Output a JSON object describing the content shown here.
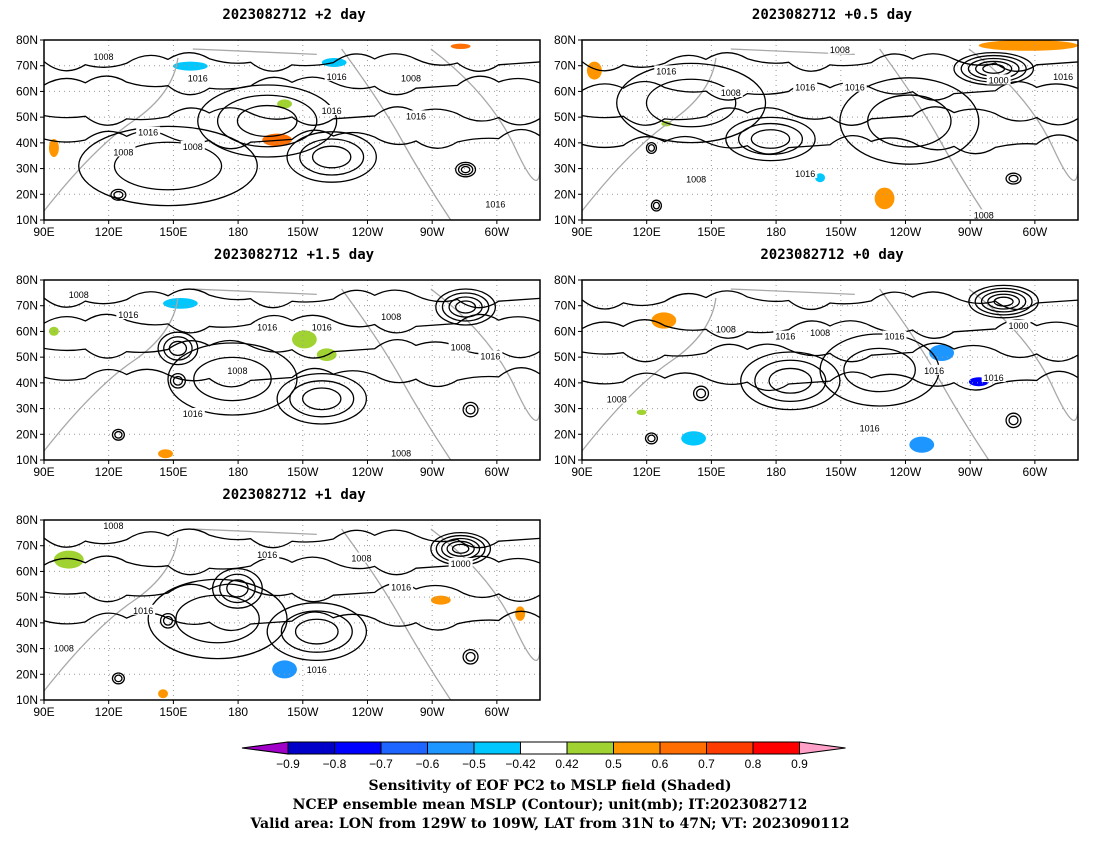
{
  "panels": [
    {
      "id": "p2",
      "title": "2023082712 +2 day",
      "lat_labels": [
        "80N",
        "70N",
        "60N",
        "50N",
        "40N",
        "30N",
        "20N",
        "10N"
      ],
      "lon_labels": [
        "90E",
        "120E",
        "150E",
        "180",
        "150W",
        "120W",
        "90W",
        "60W"
      ],
      "contour_labels": [
        "1008",
        "1016",
        "1016",
        "1008",
        "1016",
        "1016",
        "1008",
        "1016",
        "1008",
        "1016"
      ]
    },
    {
      "id": "p05",
      "title": "2023082712 +0.5 day",
      "lat_labels": [
        "80N",
        "70N",
        "60N",
        "50N",
        "40N",
        "30N",
        "20N",
        "10N"
      ],
      "lon_labels": [
        "90E",
        "120E",
        "150E",
        "180",
        "150W",
        "120W",
        "90W",
        "60W"
      ],
      "contour_labels": [
        "1008",
        "1016",
        "1016",
        "1016",
        "1008",
        "1000",
        "1016",
        "1008",
        "1016",
        "1008"
      ]
    },
    {
      "id": "p15",
      "title": "2023082712 +1.5 day",
      "lat_labels": [
        "80N",
        "70N",
        "60N",
        "50N",
        "40N",
        "30N",
        "20N",
        "10N"
      ],
      "lon_labels": [
        "90E",
        "120E",
        "150E",
        "180",
        "150W",
        "120W",
        "90W",
        "60W"
      ],
      "contour_labels": [
        "1008",
        "1016",
        "1016",
        "1016",
        "1008",
        "1008",
        "1008",
        "1016",
        "1008",
        "1016"
      ]
    },
    {
      "id": "p0",
      "title": "2023082712 +0 day",
      "lat_labels": [
        "80N",
        "70N",
        "60N",
        "50N",
        "40N",
        "30N",
        "20N",
        "10N"
      ],
      "lon_labels": [
        "90E",
        "120E",
        "150E",
        "180",
        "150W",
        "120W",
        "90W",
        "60W"
      ],
      "contour_labels": [
        "1008",
        "1016",
        "1008",
        "1016",
        "1000",
        "1016",
        "1016",
        "1008",
        "1016"
      ]
    },
    {
      "id": "p1",
      "title": "2023082712 +1 day",
      "lat_labels": [
        "80N",
        "70N",
        "60N",
        "50N",
        "40N",
        "30N",
        "20N",
        "10N"
      ],
      "lon_labels": [
        "90E",
        "120E",
        "150E",
        "180",
        "150W",
        "120W",
        "90W",
        "60W"
      ],
      "contour_labels": [
        "1008",
        "1016",
        "1008",
        "1016",
        "1000",
        "1016",
        "1008",
        "1016"
      ]
    }
  ],
  "colorbar": {
    "labels": [
      "−0.9",
      "−0.8",
      "−0.7",
      "−0.6",
      "−0.5",
      "−0.42",
      "0.42",
      "0.5",
      "0.6",
      "0.7",
      "0.8",
      "0.9"
    ],
    "colors": [
      "#a000c8",
      "#0000c8",
      "#0000ff",
      "#1e64ff",
      "#1e96ff",
      "#00c8ff",
      "#ffffff",
      "#a0d232",
      "#ff9600",
      "#ff6e00",
      "#ff3c00",
      "#ff0000",
      "#ffa0c8"
    ]
  },
  "caption": {
    "line1": "Sensitivity of EOF PC2 to MSLP field (Shaded)",
    "line2": "NCEP ensemble mean MSLP (Contour); unit(mb); IT:2023082712",
    "line3": "Valid area: LON from 129W to 109W, LAT from 31N to 47N; VT: 2023090112"
  }
}
